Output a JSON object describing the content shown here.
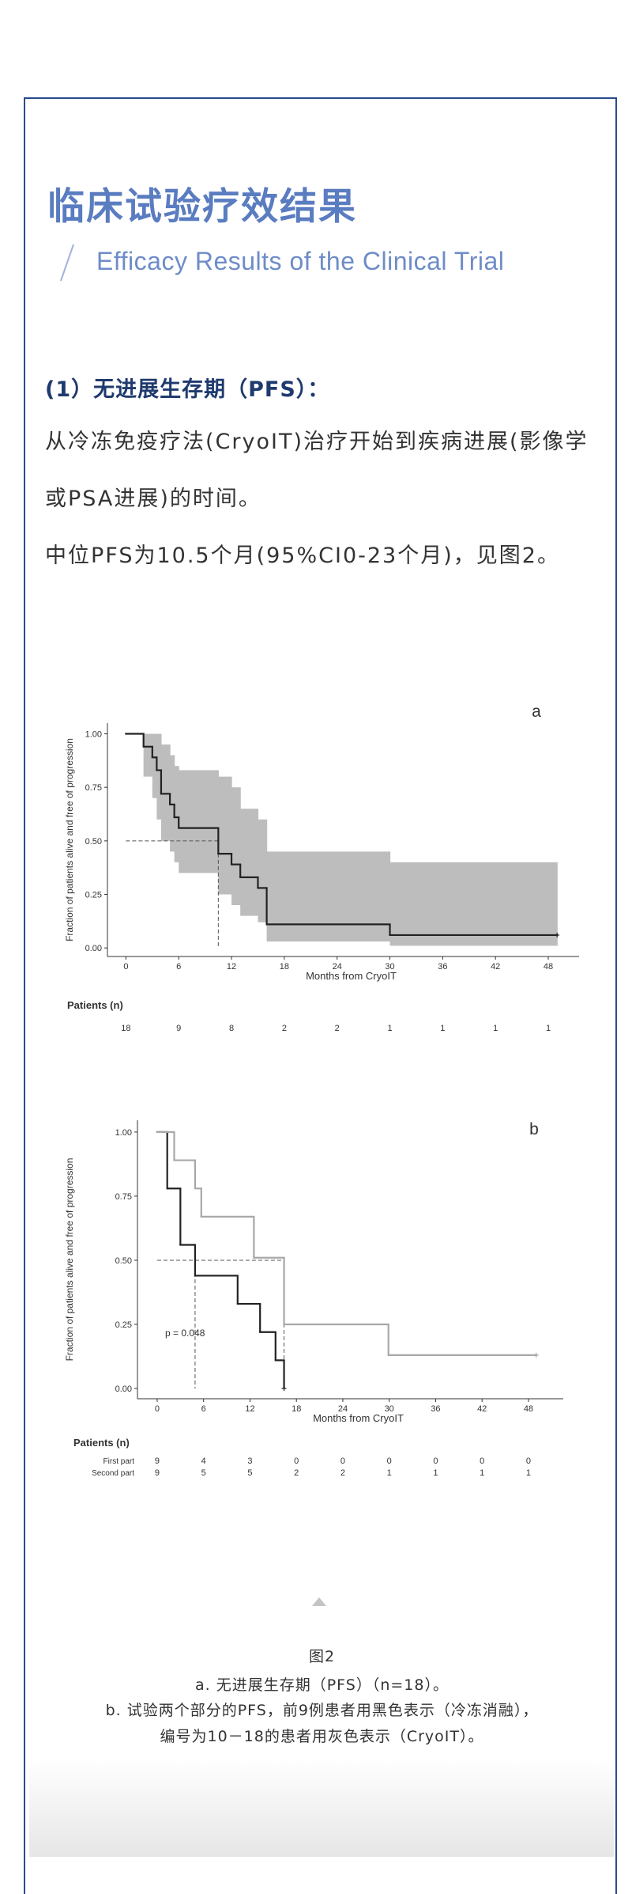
{
  "header": {
    "title": "临床试验疗效结果",
    "subtitle": "Efficacy Results of the Clinical Trial"
  },
  "section": {
    "heading": "(1）无进展生存期（PFS）：",
    "paragraphs": [
      "从冷冻免疫疗法(CryoIT)治疗开始到疾病进展(影像学或PSA进展)的时间。",
      "中位PFS为10.5个月(95%CI0-23个月)，见图2。"
    ]
  },
  "chart_data": [
    {
      "type": "step",
      "label": "a",
      "x_label": "Months from CryoIT",
      "y_label": "Fraction of patients alive and free of progression",
      "xlim": [
        -2.1,
        51.5
      ],
      "ylim": [
        -0.04,
        1.05
      ],
      "xticks": [
        0,
        6,
        12,
        18,
        24,
        30,
        36,
        42,
        48
      ],
      "yticks": [
        {
          "value": 0,
          "label": "0.00"
        },
        {
          "value": 0.25,
          "label": "0.25"
        },
        {
          "value": 0.5,
          "label": "0.50"
        },
        {
          "value": 0.75,
          "label": "0.75"
        },
        {
          "value": 1,
          "label": "1.00"
        }
      ],
      "series": [
        {
          "color": "#222222",
          "band_color": "#bdbdbd",
          "x": [
            0,
            2,
            3,
            3.5,
            4,
            5,
            5.5,
            6,
            10.5,
            12,
            13,
            15,
            16,
            30,
            49
          ],
          "values": [
            1,
            0.94,
            0.89,
            0.83,
            0.72,
            0.67,
            0.61,
            0.56,
            0.44,
            0.39,
            0.33,
            0.28,
            0.11,
            0.06,
            0.06
          ],
          "upper": [
            1,
            1,
            1,
            1,
            0.95,
            0.9,
            0.85,
            0.83,
            0.8,
            0.75,
            0.65,
            0.6,
            0.45,
            0.4,
            0.4
          ],
          "lower": [
            1,
            0.8,
            0.7,
            0.6,
            0.5,
            0.45,
            0.4,
            0.35,
            0.25,
            0.2,
            0.15,
            0.12,
            0.03,
            0.01,
            0.01
          ]
        }
      ],
      "median_lines": {
        "y": 0.5,
        "x": [
          10.5
        ]
      },
      "risk_table": {
        "title": "Patients (n)",
        "rows": [
          {
            "color": "#333333",
            "values": [
              18,
              9,
              8,
              2,
              2,
              1,
              1,
              1,
              1
            ]
          }
        ]
      }
    },
    {
      "type": "step",
      "label": "b",
      "x_label": "Months from CryoIT",
      "y_label": "Fraction of patients alive and free of progression",
      "xlim": [
        -2.55,
        52.5
      ],
      "ylim": [
        -0.04,
        1.046
      ],
      "xticks": [
        0,
        6,
        12,
        18,
        24,
        30,
        36,
        42,
        48
      ],
      "yticks": [
        {
          "value": 0,
          "label": "0.00"
        },
        {
          "value": 0.25,
          "label": "0.25"
        },
        {
          "value": 0.5,
          "label": "0.50"
        },
        {
          "value": 0.75,
          "label": "0.75"
        },
        {
          "value": 1,
          "label": "1.00"
        }
      ],
      "series": [
        {
          "name": "First part",
          "color": "#222222",
          "x": [
            0,
            1.3,
            3,
            4.9,
            10.4,
            13.3,
            15.3,
            16.4
          ],
          "values": [
            1,
            0.78,
            0.56,
            0.44,
            0.33,
            0.22,
            0.11,
            0
          ]
        },
        {
          "name": "Second part",
          "color": "#a8a8a8",
          "x": [
            0,
            2.2,
            4.9,
            5.7,
            12.5,
            16.4,
            29.9,
            49
          ],
          "values": [
            1,
            0.89,
            0.78,
            0.67,
            0.51,
            0.25,
            0.13,
            0.13
          ]
        }
      ],
      "median_lines": {
        "y": 0.5,
        "x": [
          4.9,
          16.4
        ]
      },
      "annotation": "p = 0.048",
      "risk_table": {
        "title": "Patients (n)",
        "rows": [
          {
            "name": "First part",
            "color": "#333333",
            "values": [
              9,
              4,
              3,
              0,
              0,
              0,
              0,
              0,
              0
            ]
          },
          {
            "name": "Second part",
            "color": "#999999",
            "values": [
              9,
              5,
              5,
              2,
              2,
              1,
              1,
              1,
              1
            ]
          }
        ]
      }
    }
  ],
  "caption": {
    "title": "图2",
    "lines": [
      "a. 无进展生存期（PFS）（n=18）。",
      "b. 试验两个部分的PFS，前9例患者用黑色表示（冷冻消融），",
      "编号为10－18的患者用灰色表示（CryoIT）。"
    ]
  }
}
